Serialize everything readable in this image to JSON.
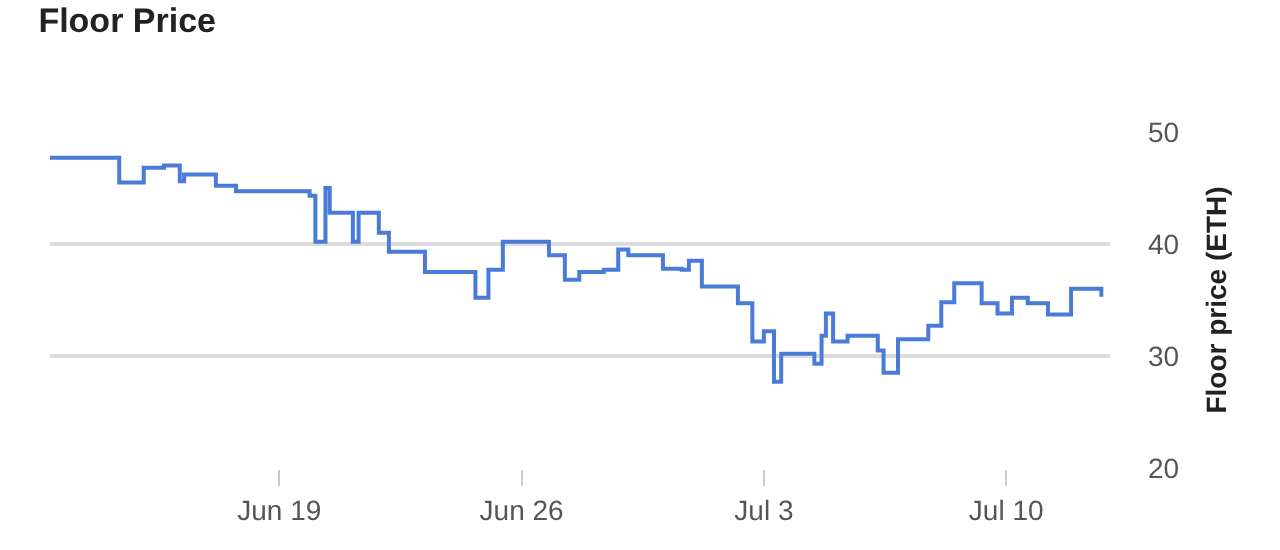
{
  "chart_data": {
    "type": "step",
    "title": "Floor Price",
    "ylabel": "Floor price (ETH)",
    "x": [
      "--06-12T09:00",
      "--06-14T09:00",
      "--06-15T02:00",
      "--06-15T16:00",
      "--06-16T03:00",
      "--06-16T06:00",
      "--06-17T04:00",
      "--06-17T18:00",
      "--06-19T21:00",
      "--06-20T01:00",
      "--06-20T08:00",
      "--06-20T11:00",
      "--06-21T03:00",
      "--06-21T07:00",
      "--06-21T14:00",
      "--06-21T21:00",
      "--06-22T04:00",
      "--06-23T05:00",
      "--06-24T16:00",
      "--06-25T01:00",
      "--06-25T11:00",
      "--06-26T19:00",
      "--06-27T06:00",
      "--06-27T16:00",
      "--06-28T09:00",
      "--06-28T19:00",
      "--06-29T02:00",
      "--06-30T02:00",
      "--06-30T15:00",
      "--06-30T20:00",
      "--07-01T05:00",
      "--07-02T06:00",
      "--07-02T14:00",
      "--07-02T16:00",
      "--07-03T00:00",
      "--07-03T07:00",
      "--07-03T12:00",
      "--07-04T06:00",
      "--07-04T11:00",
      "--07-04T16:00",
      "--07-04T19:00",
      "--07-05T00:00",
      "--07-05T10:00",
      "--07-06T07:00",
      "--07-06T11:00",
      "--07-06T21:00",
      "--07-07T18:00",
      "--07-08T03:00",
      "--07-08T12:00",
      "--07-08T21:00",
      "--07-09T07:00",
      "--07-09T18:00",
      "--07-10T04:00",
      "--07-10T15:00",
      "--07-11T05:00",
      "--07-11T21:00",
      "--07-12T18:00"
    ],
    "series": [
      {
        "color": "#4a7bd8",
        "values": [
          47.7,
          45.5,
          46.8,
          47,
          45.6,
          46.2,
          45.2,
          44.7,
          44.3,
          40.2,
          45,
          42.8,
          40.2,
          42.8,
          42.8,
          41,
          39.3,
          37.5,
          35.2,
          37.7,
          40.2,
          39,
          36.8,
          37.5,
          37.7,
          39.5,
          39,
          37.8,
          37.7,
          38.5,
          36.2,
          34.7,
          34.7,
          31.3,
          32.2,
          27.7,
          30.2,
          30.2,
          29.3,
          31.8,
          33.8,
          31.3,
          31.8,
          30.5,
          28.5,
          31.5,
          32.7,
          34.8,
          36.5,
          36.5,
          34.7,
          33.8,
          35.2,
          34.7,
          33.7,
          36,
          35.3
        ]
      }
    ],
    "xlim": [
      "--06-12T09:00",
      "--07-13T00:00"
    ],
    "xticks": [
      {
        "value": "--06-19",
        "label": "Jun 19"
      },
      {
        "value": "--06-26",
        "label": "Jun 26"
      },
      {
        "value": "--07-03",
        "label": "Jul 3"
      },
      {
        "value": "--07-10",
        "label": "Jul 10"
      }
    ],
    "ylim": [
      20,
      50
    ],
    "yticks": [
      20,
      30,
      40,
      50
    ],
    "grid": "y"
  }
}
